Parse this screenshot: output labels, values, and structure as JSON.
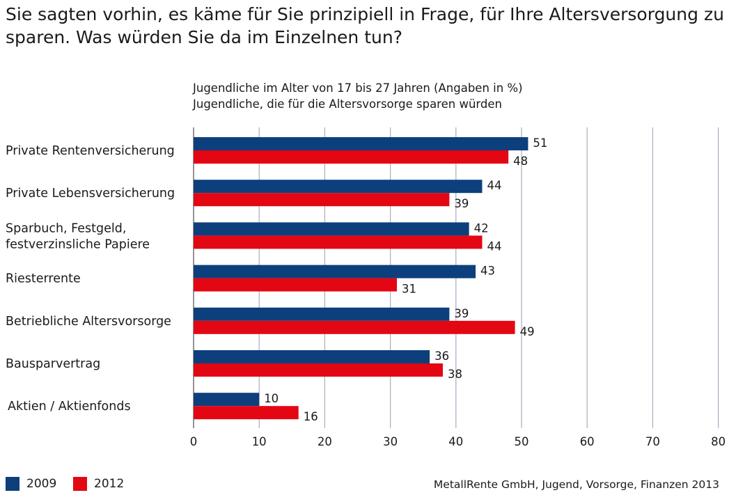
{
  "chart_data": {
    "type": "bar",
    "orientation": "horizontal",
    "title": "Sie sagten vorhin, es käme für Sie prinzipiell in Frage, für Ihre Altersversorgung zu sparen. Was würden Sie da im Einzelnen tun?",
    "subtitle_lines": [
      "Jugendliche im Alter von 17 bis 27 Jahren (Angaben in %)",
      "Jugendliche, die für die Altersvorsorge sparen würden"
    ],
    "categories": [
      [
        "Private Rentenversicherung"
      ],
      [
        "Private Lebensversicherung"
      ],
      [
        "Sparbuch, Festgeld,",
        "festverzinsliche Papiere"
      ],
      [
        "Riesterrente"
      ],
      [
        "Betriebliche Altersvorsorge"
      ],
      [
        "Bausparvertrag"
      ],
      [
        "Aktien / Aktienfonds"
      ]
    ],
    "series": [
      {
        "name": "2009",
        "color": "#0d3f7d",
        "values": [
          51,
          44,
          42,
          43,
          39,
          36,
          10
        ]
      },
      {
        "name": "2012",
        "color": "#e30613",
        "values": [
          48,
          39,
          44,
          31,
          49,
          38,
          16
        ]
      }
    ],
    "xlim": [
      0,
      80
    ],
    "xticks": [
      0,
      10,
      20,
      30,
      40,
      50,
      60,
      70,
      80
    ],
    "grid": true,
    "legend_position": "bottom-left",
    "source": "MetallRente GmbH, Jugend, Vorsorge, Finanzen 2013"
  }
}
